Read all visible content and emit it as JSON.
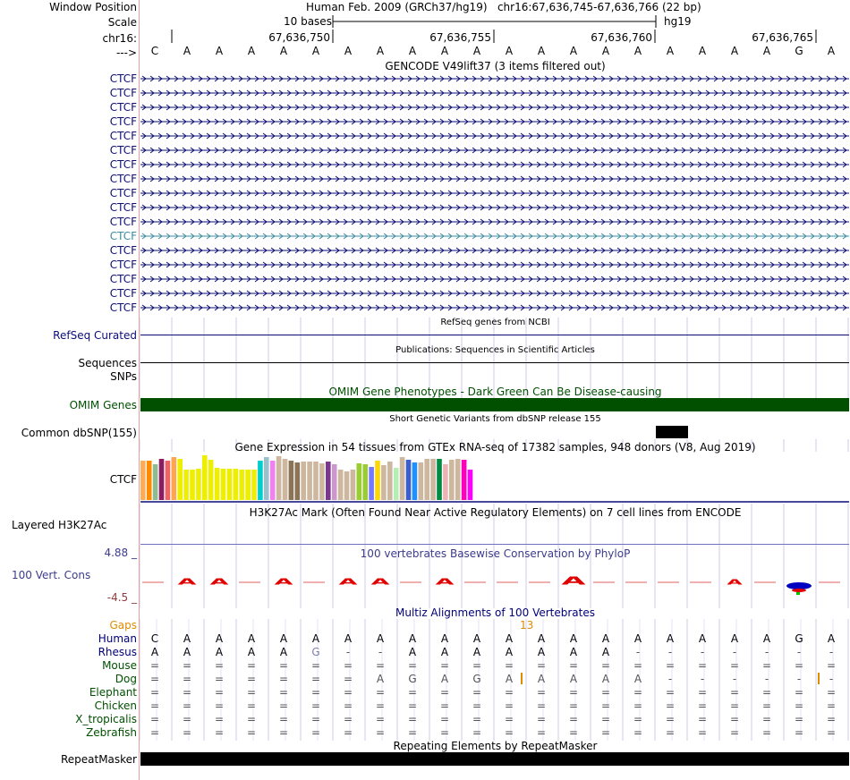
{
  "ruler": {
    "window_position_label": "Window Position",
    "window_position_text": "Human Feb. 2009 (GRCh37/hg19)   chr16:67,636,745-67,636,766 (22 bp)",
    "scale_label": "Scale",
    "scale_text": "10 bases",
    "scale_assembly": "hg19",
    "chrom_label": "chr16:",
    "positions": [
      "67,636,750",
      "67,636,755",
      "67,636,760",
      "67,636,765"
    ],
    "strand_label": "--->",
    "bases": [
      "C",
      "A",
      "A",
      "A",
      "A",
      "A",
      "A",
      "A",
      "A",
      "A",
      "A",
      "A",
      "A",
      "A",
      "A",
      "A",
      "A",
      "A",
      "A",
      "A",
      "G",
      "A"
    ]
  },
  "gencode": {
    "title": "GENCODE V49lift37 (3 items filtered out)",
    "items": [
      "CTCF",
      "CTCF",
      "CTCF",
      "CTCF",
      "CTCF",
      "CTCF",
      "CTCF",
      "CTCF",
      "CTCF",
      "CTCF",
      "CTCF",
      "CTCF",
      "CTCF",
      "CTCF",
      "CTCF",
      "CTCF",
      "CTCF"
    ],
    "highlight_index": 11,
    "color": "#0c0c78",
    "highlight_color": "#3c8ca0"
  },
  "refseq": {
    "title": "RefSeq genes from NCBI",
    "label": "RefSeq Curated"
  },
  "pubs": {
    "title": "Publications: Sequences in Scientific Articles",
    "label_sequences": "Sequences",
    "label_snps": "SNPs"
  },
  "omim": {
    "title": "OMIM Gene Phenotypes - Dark Green Can Be Disease-causing",
    "label": "OMIM Genes",
    "color": "#005000"
  },
  "dbsnp": {
    "title": "Short Genetic Variants from dbSNP release 155",
    "label": "Common dbSNP(155)"
  },
  "gtex": {
    "title": "Gene Expression in 54 tissues from GTEx RNA-seq of 17382 samples, 948 donors (V8, Aug 2019)",
    "label": "CTCF",
    "levels": [
      0.88,
      0.88,
      0.8,
      0.92,
      0.88,
      0.95,
      0.92,
      0.68,
      0.68,
      0.7,
      1.0,
      0.9,
      0.72,
      0.7,
      0.7,
      0.7,
      0.68,
      0.68,
      0.68,
      0.88,
      0.95,
      0.88,
      0.98,
      0.92,
      0.88,
      0.84,
      0.86,
      0.86,
      0.86,
      0.82,
      0.85,
      0.8,
      0.68,
      0.64,
      0.68,
      0.82,
      0.8,
      0.74,
      0.88,
      0.78,
      0.86,
      0.72,
      0.95,
      0.9,
      0.84,
      0.84,
      0.92,
      0.92,
      0.92,
      0.8,
      0.9,
      0.92,
      0.9,
      0.68
    ],
    "colors": [
      "#ffaa55",
      "#ff8a00",
      "#8fbc8f",
      "#8b1c62",
      "#ee6363",
      "#ffa54f",
      "#eeee00",
      "#eeee00",
      "#eeee00",
      "#eeee00",
      "#eeee00",
      "#eeee00",
      "#eeee00",
      "#eeee00",
      "#eeee00",
      "#eeee00",
      "#eeee00",
      "#eeee00",
      "#eeee00",
      "#00cdcd",
      "#9ac0cd",
      "#ee82ee",
      "#cdb79e",
      "#cdb79e",
      "#8b7355",
      "#8b7355",
      "#cdb79e",
      "#cdb79e",
      "#cdb79e",
      "#cdb79e",
      "#7a378b",
      "#cd96cd",
      "#cdb79e",
      "#cdb79e",
      "#cdb79e",
      "#9acd32",
      "#9acd32",
      "#7777ff",
      "#ffd700",
      "#cdb79e",
      "#cdb79e",
      "#b4eeb4",
      "#cdb79e",
      "#3a5fcd",
      "#1e90ff",
      "#cdb79e",
      "#cdb79e",
      "#cdb79e",
      "#008b45",
      "#eeb4b4",
      "#cdb79e",
      "#cdb79e",
      "#ff00bb",
      "#ff00ff"
    ]
  },
  "h3k27ac": {
    "title": "H3K27Ac Mark (Often Found Near Active Regulatory Elements) on 7 cell lines from ENCODE",
    "label": "Layered H3K27Ac"
  },
  "phylop": {
    "title": "100 vertebrates Basewise Conservation by PhyloP",
    "label": "100 Vert. Cons",
    "max_label": "4.88 _",
    "min_label": "-4.5 _",
    "color": "#3c3c8c",
    "min_color": "#8c3c3c"
  },
  "multiz": {
    "title": "Multiz Alignments of 100 Vertebrates",
    "gaps_label": "Gaps",
    "gap_count": "13",
    "gap_color": "#e08c00",
    "species": [
      {
        "name": "Human",
        "color": "#000078",
        "bases": [
          "C",
          "A",
          "A",
          "A",
          "A",
          "A",
          "A",
          "A",
          "A",
          "A",
          "A",
          "A",
          "A",
          "A",
          "A",
          "A",
          "A",
          "A",
          "A",
          "A",
          "G",
          "A"
        ]
      },
      {
        "name": "Rhesus",
        "color": "#000078",
        "bases": [
          "A",
          "A",
          "A",
          "A",
          "A",
          "G",
          "-",
          "-",
          "A",
          "A",
          "A",
          "A",
          "A",
          "A",
          "A",
          "-",
          "-",
          "-",
          "-",
          "-",
          "-",
          "-"
        ]
      },
      {
        "name": "Mouse",
        "color": "#005000",
        "bases": [
          "=",
          "=",
          "=",
          "=",
          "=",
          "=",
          "=",
          "=",
          "=",
          "=",
          "=",
          "=",
          "=",
          "=",
          "=",
          "=",
          "=",
          "=",
          "=",
          "=",
          "=",
          "="
        ]
      },
      {
        "name": "Dog",
        "color": "#005000",
        "bases": [
          "=",
          "=",
          "=",
          "=",
          "=",
          "=",
          "=",
          "A",
          "G",
          "A",
          "G",
          "A",
          "A",
          "A",
          "A",
          "A",
          "-",
          "-",
          "-",
          "-",
          "-",
          "-"
        ]
      },
      {
        "name": "Elephant",
        "color": "#005000",
        "bases": [
          "=",
          "=",
          "=",
          "=",
          "=",
          "=",
          "=",
          "=",
          "=",
          "=",
          "=",
          "=",
          "=",
          "=",
          "=",
          "=",
          "=",
          "=",
          "=",
          "=",
          "=",
          "="
        ]
      },
      {
        "name": "Chicken",
        "color": "#005000",
        "bases": [
          "=",
          "=",
          "=",
          "=",
          "=",
          "=",
          "=",
          "=",
          "=",
          "=",
          "=",
          "=",
          "=",
          "=",
          "=",
          "=",
          "=",
          "=",
          "=",
          "=",
          "=",
          "="
        ]
      },
      {
        "name": "X_tropicalis",
        "color": "#005000",
        "bases": [
          "=",
          "=",
          "=",
          "=",
          "=",
          "=",
          "=",
          "=",
          "=",
          "=",
          "=",
          "=",
          "=",
          "=",
          "=",
          "=",
          "=",
          "=",
          "=",
          "=",
          "=",
          "="
        ]
      },
      {
        "name": "Zebrafish",
        "color": "#005000",
        "bases": [
          "=",
          "=",
          "=",
          "=",
          "=",
          "=",
          "=",
          "=",
          "=",
          "=",
          "=",
          "=",
          "=",
          "=",
          "=",
          "=",
          "=",
          "=",
          "=",
          "=",
          "=",
          "="
        ]
      }
    ]
  },
  "repeatmasker": {
    "title": "Repeating Elements by RepeatMasker",
    "label": "RepeatMasker"
  }
}
